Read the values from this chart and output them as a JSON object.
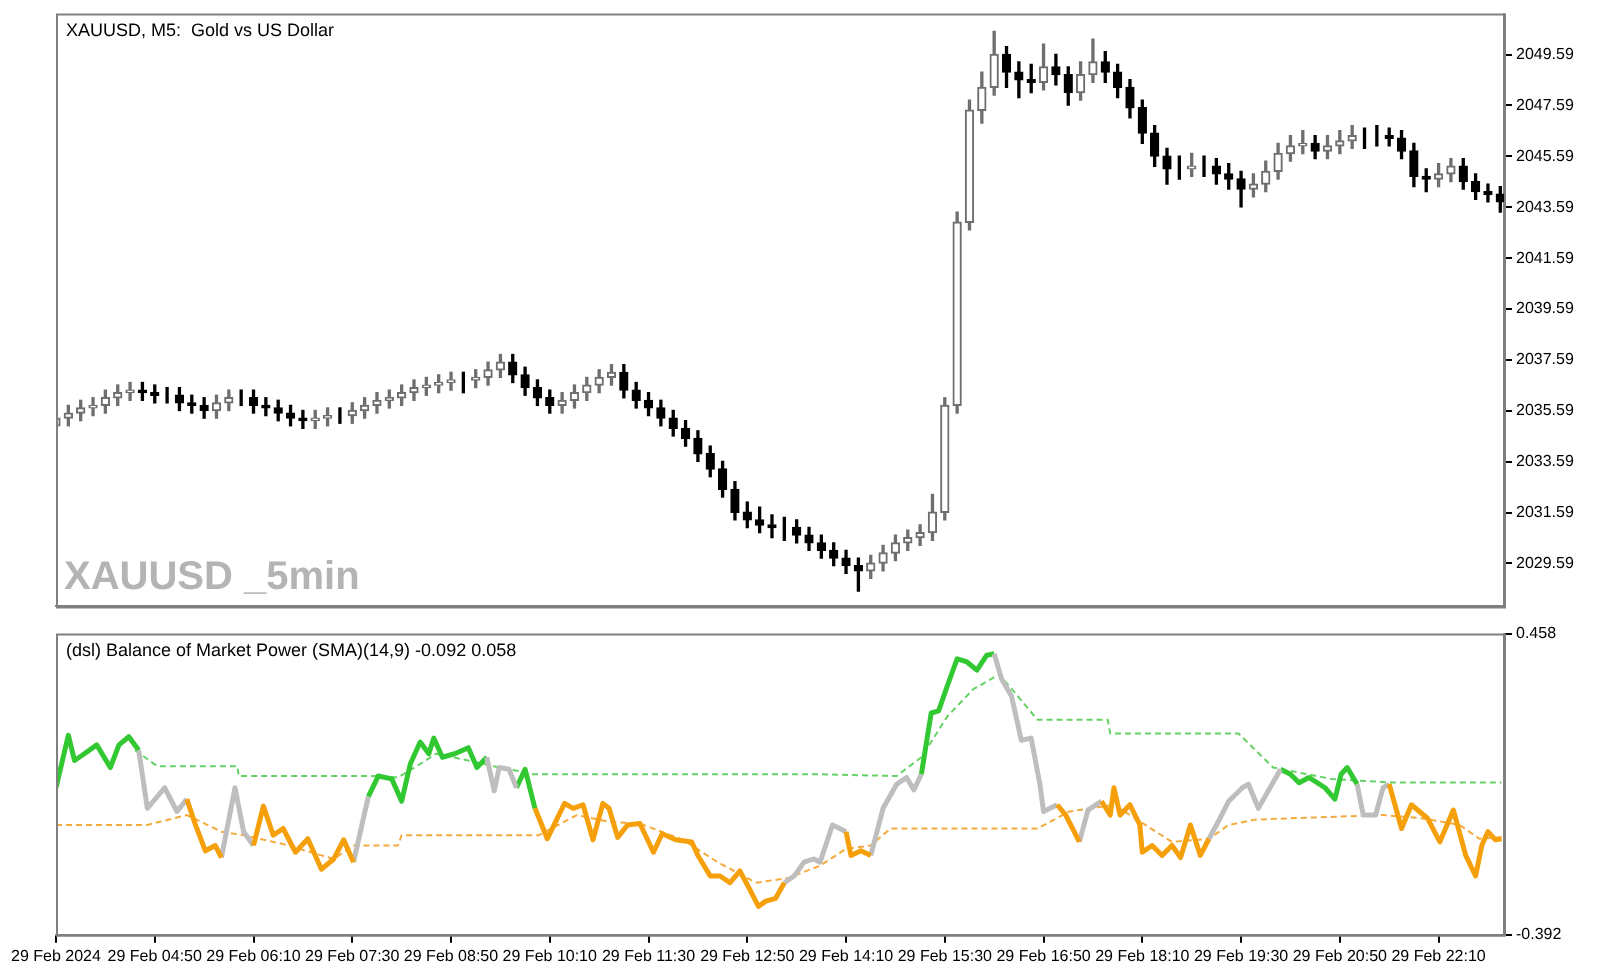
{
  "chart_data": [
    {
      "type": "candlestick",
      "title": "XAUUSD, M5:  Gold vs US Dollar",
      "annotations": [
        "XAUUSD _5min"
      ],
      "colors": [
        "#6e6e6e",
        "#6e6e6e",
        "#6e6e6e",
        "#6e6e6e",
        "#6e6e6e",
        "#6e6e6e",
        "#6e6e6e",
        "#000000",
        "#000000",
        "#000000",
        "#000000",
        "#000000",
        "#000000",
        "#6e6e6e",
        "#6e6e6e",
        "#000000",
        "#000000",
        "#000000",
        "#000000",
        "#000000",
        "#000000",
        "#6e6e6e",
        "#6e6e6e",
        "#000000",
        "#6e6e6e",
        "#6e6e6e",
        "#6e6e6e",
        "#6e6e6e",
        "#6e6e6e",
        "#6e6e6e",
        "#6e6e6e",
        "#6e6e6e",
        "#6e6e6e",
        "#000000",
        "#6e6e6e",
        "#6e6e6e",
        "#6e6e6e",
        "#000000",
        "#000000",
        "#000000",
        "#000000",
        "#6e6e6e",
        "#6e6e6e",
        "#6e6e6e",
        "#6e6e6e",
        "#6e6e6e",
        "#000000",
        "#000000",
        "#000000",
        "#000000",
        "#000000",
        "#000000",
        "#000000",
        "#000000",
        "#000000",
        "#000000",
        "#000000",
        "#000000",
        "#000000",
        "#000000",
        "#000000",
        "#000000",
        "#000000",
        "#000000",
        "#000000",
        "#000000",
        "#6e6e6e",
        "#6e6e6e",
        "#6e6e6e",
        "#6e6e6e",
        "#6e6e6e",
        "#6e6e6e",
        "#6e6e6e",
        "#6e6e6e",
        "#6e6e6e",
        "#6e6e6e",
        "#6e6e6e",
        "#000000",
        "#000000",
        "#000000",
        "#6e6e6e",
        "#000000",
        "#000000",
        "#6e6e6e",
        "#6e6e6e",
        "#000000",
        "#000000",
        "#000000",
        "#000000",
        "#000000",
        "#000000",
        "#000000",
        "#6e6e6e",
        "#000000",
        "#000000",
        "#000000",
        "#000000",
        "#6e6e6e",
        "#6e6e6e",
        "#6e6e6e",
        "#6e6e6e",
        "#6e6e6e",
        "#000000",
        "#6e6e6e",
        "#6e6e6e",
        "#6e6e6e",
        "#000000",
        "#000000",
        "#000000",
        "#000000",
        "#000000",
        "#000000",
        "#6e6e6e",
        "#6e6e6e",
        "#000000",
        "#000000",
        "#000000",
        "#000000"
      ],
      "grid": false,
      "legend": false,
      "tick_labels": "y",
      "xlim": [
        "2024-02-29T03:30",
        "2024-02-29T23:03"
      ],
      "ylim": [
        2027.9,
        2051.2
      ],
      "yticks": [
        2029.59,
        2031.59,
        2033.59,
        2035.59,
        2037.59,
        2039.59,
        2041.59,
        2043.59,
        2045.59,
        2047.59,
        2049.59
      ],
      "x": [
        "2024-02-29T03:30",
        "2024-02-29T03:40",
        "2024-02-29T03:50",
        "2024-02-29T04:00",
        "2024-02-29T04:10",
        "2024-02-29T04:20",
        "2024-02-29T04:30",
        "2024-02-29T04:40",
        "2024-02-29T04:50",
        "2024-02-29T05:00",
        "2024-02-29T05:10",
        "2024-02-29T05:20",
        "2024-02-29T05:30",
        "2024-02-29T05:40",
        "2024-02-29T05:50",
        "2024-02-29T06:00",
        "2024-02-29T06:10",
        "2024-02-29T06:20",
        "2024-02-29T06:30",
        "2024-02-29T06:40",
        "2024-02-29T06:50",
        "2024-02-29T07:00",
        "2024-02-29T07:10",
        "2024-02-29T07:20",
        "2024-02-29T07:30",
        "2024-02-29T07:40",
        "2024-02-29T07:50",
        "2024-02-29T08:00",
        "2024-02-29T08:10",
        "2024-02-29T08:20",
        "2024-02-29T08:30",
        "2024-02-29T08:40",
        "2024-02-29T08:50",
        "2024-02-29T09:00",
        "2024-02-29T09:10",
        "2024-02-29T09:20",
        "2024-02-29T09:30",
        "2024-02-29T09:40",
        "2024-02-29T09:50",
        "2024-02-29T10:00",
        "2024-02-29T10:10",
        "2024-02-29T10:20",
        "2024-02-29T10:30",
        "2024-02-29T10:40",
        "2024-02-29T10:50",
        "2024-02-29T11:00",
        "2024-02-29T11:10",
        "2024-02-29T11:20",
        "2024-02-29T11:30",
        "2024-02-29T11:40",
        "2024-02-29T11:50",
        "2024-02-29T12:00",
        "2024-02-29T12:10",
        "2024-02-29T12:20",
        "2024-02-29T12:30",
        "2024-02-29T12:40",
        "2024-02-29T12:50",
        "2024-02-29T13:00",
        "2024-02-29T13:10",
        "2024-02-29T13:20",
        "2024-02-29T13:30",
        "2024-02-29T13:40",
        "2024-02-29T13:50",
        "2024-02-29T14:00",
        "2024-02-29T14:10",
        "2024-02-29T14:20",
        "2024-02-29T14:30",
        "2024-02-29T14:40",
        "2024-02-29T14:50",
        "2024-02-29T15:00",
        "2024-02-29T15:10",
        "2024-02-29T15:20",
        "2024-02-29T15:30",
        "2024-02-29T15:40",
        "2024-02-29T15:50",
        "2024-02-29T16:00",
        "2024-02-29T16:10",
        "2024-02-29T16:20",
        "2024-02-29T16:30",
        "2024-02-29T16:40",
        "2024-02-29T16:50",
        "2024-02-29T17:00",
        "2024-02-29T17:10",
        "2024-02-29T17:20",
        "2024-02-29T17:30",
        "2024-02-29T17:40",
        "2024-02-29T17:50",
        "2024-02-29T18:00",
        "2024-02-29T18:10",
        "2024-02-29T18:20",
        "2024-02-29T18:30",
        "2024-02-29T18:40",
        "2024-02-29T18:50",
        "2024-02-29T19:00",
        "2024-02-29T19:10",
        "2024-02-29T19:20",
        "2024-02-29T19:30",
        "2024-02-29T19:40",
        "2024-02-29T19:50",
        "2024-02-29T20:00",
        "2024-02-29T20:10",
        "2024-02-29T20:20",
        "2024-02-29T20:30",
        "2024-02-29T20:40",
        "2024-02-29T20:50",
        "2024-02-29T21:00",
        "2024-02-29T21:10",
        "2024-02-29T21:20",
        "2024-02-29T21:30",
        "2024-02-29T21:40",
        "2024-02-29T21:50",
        "2024-02-29T22:00",
        "2024-02-29T22:10",
        "2024-02-29T22:20",
        "2024-02-29T22:30",
        "2024-02-29T22:40",
        "2024-02-29T22:50",
        "2024-02-29T23:00"
      ],
      "ohlc": [
        [
          2035.0,
          2035.6,
          2034.7,
          2035.3
        ],
        [
          2035.3,
          2035.8,
          2035.0,
          2035.5
        ],
        [
          2035.5,
          2036.0,
          2035.2,
          2035.7
        ],
        [
          2035.7,
          2036.1,
          2035.4,
          2035.8
        ],
        [
          2035.8,
          2036.4,
          2035.5,
          2036.1
        ],
        [
          2036.1,
          2036.6,
          2035.8,
          2036.3
        ],
        [
          2036.3,
          2036.7,
          2036.0,
          2036.4
        ],
        [
          2036.4,
          2036.7,
          2036.0,
          2036.3
        ],
        [
          2036.3,
          2036.6,
          2035.9,
          2036.2
        ],
        [
          2036.2,
          2036.5,
          2035.9,
          2036.2
        ],
        [
          2036.2,
          2036.5,
          2035.6,
          2035.9
        ],
        [
          2035.9,
          2036.2,
          2035.5,
          2035.8
        ],
        [
          2035.8,
          2036.1,
          2035.3,
          2035.6
        ],
        [
          2035.6,
          2036.2,
          2035.3,
          2035.9
        ],
        [
          2035.9,
          2036.4,
          2035.6,
          2036.1
        ],
        [
          2036.1,
          2036.4,
          2035.8,
          2036.1
        ],
        [
          2036.1,
          2036.4,
          2035.5,
          2035.8
        ],
        [
          2035.8,
          2036.1,
          2035.4,
          2035.7
        ],
        [
          2035.7,
          2036.0,
          2035.2,
          2035.5
        ],
        [
          2035.5,
          2035.8,
          2035.0,
          2035.3
        ],
        [
          2035.3,
          2035.6,
          2034.9,
          2035.2
        ],
        [
          2035.2,
          2035.6,
          2034.9,
          2035.3
        ],
        [
          2035.3,
          2035.7,
          2035.0,
          2035.4
        ],
        [
          2035.4,
          2035.7,
          2035.1,
          2035.4
        ],
        [
          2035.4,
          2035.9,
          2035.1,
          2035.6
        ],
        [
          2035.6,
          2036.1,
          2035.3,
          2035.8
        ],
        [
          2035.8,
          2036.3,
          2035.5,
          2036.0
        ],
        [
          2036.0,
          2036.4,
          2035.7,
          2036.1
        ],
        [
          2036.1,
          2036.6,
          2035.8,
          2036.3
        ],
        [
          2036.3,
          2036.8,
          2036.0,
          2036.5
        ],
        [
          2036.5,
          2036.9,
          2036.2,
          2036.6
        ],
        [
          2036.6,
          2037.0,
          2036.3,
          2036.7
        ],
        [
          2036.7,
          2037.1,
          2036.4,
          2036.8
        ],
        [
          2036.8,
          2037.1,
          2036.3,
          2036.8
        ],
        [
          2036.8,
          2037.2,
          2036.5,
          2036.9
        ],
        [
          2036.9,
          2037.5,
          2036.6,
          2037.2
        ],
        [
          2037.2,
          2037.8,
          2036.9,
          2037.5
        ],
        [
          2037.5,
          2037.8,
          2036.7,
          2037.0
        ],
        [
          2037.0,
          2037.3,
          2036.2,
          2036.5
        ],
        [
          2036.5,
          2036.8,
          2035.8,
          2036.1
        ],
        [
          2036.1,
          2036.4,
          2035.5,
          2035.8
        ],
        [
          2035.8,
          2036.3,
          2035.5,
          2036.0
        ],
        [
          2036.0,
          2036.6,
          2035.7,
          2036.3
        ],
        [
          2036.3,
          2036.9,
          2036.0,
          2036.6
        ],
        [
          2036.6,
          2037.2,
          2036.3,
          2036.9
        ],
        [
          2036.9,
          2037.4,
          2036.6,
          2037.1
        ],
        [
          2037.1,
          2037.4,
          2036.1,
          2036.4
        ],
        [
          2036.4,
          2036.7,
          2035.7,
          2036.0
        ],
        [
          2036.0,
          2036.3,
          2035.4,
          2035.7
        ],
        [
          2035.7,
          2036.0,
          2035.0,
          2035.3
        ],
        [
          2035.3,
          2035.6,
          2034.6,
          2034.9
        ],
        [
          2034.9,
          2035.2,
          2034.2,
          2034.5
        ],
        [
          2034.5,
          2034.8,
          2033.6,
          2033.9
        ],
        [
          2033.9,
          2034.2,
          2033.0,
          2033.3
        ],
        [
          2033.3,
          2033.6,
          2032.2,
          2032.5
        ],
        [
          2032.5,
          2032.8,
          2031.3,
          2031.6
        ],
        [
          2031.6,
          2032.0,
          2031.0,
          2031.3
        ],
        [
          2031.3,
          2031.8,
          2030.8,
          2031.1
        ],
        [
          2031.1,
          2031.5,
          2030.6,
          2031.0
        ],
        [
          2031.0,
          2031.4,
          2030.5,
          2031.0
        ],
        [
          2031.0,
          2031.3,
          2030.4,
          2030.7
        ],
        [
          2030.7,
          2031.0,
          2030.1,
          2030.4
        ],
        [
          2030.4,
          2030.7,
          2029.8,
          2030.1
        ],
        [
          2030.1,
          2030.4,
          2029.5,
          2029.8
        ],
        [
          2029.8,
          2030.1,
          2029.2,
          2029.5
        ],
        [
          2029.5,
          2029.8,
          2028.5,
          2029.3
        ],
        [
          2029.3,
          2029.9,
          2029.0,
          2029.6
        ],
        [
          2029.6,
          2030.3,
          2029.3,
          2030.0
        ],
        [
          2030.0,
          2030.7,
          2029.7,
          2030.4
        ],
        [
          2030.4,
          2030.9,
          2030.1,
          2030.6
        ],
        [
          2030.6,
          2031.1,
          2030.3,
          2030.8
        ],
        [
          2030.8,
          2032.3,
          2030.5,
          2031.6
        ],
        [
          2031.6,
          2036.1,
          2031.3,
          2035.8
        ],
        [
          2035.8,
          2043.4,
          2035.5,
          2043.0
        ],
        [
          2043.0,
          2047.8,
          2042.7,
          2047.4
        ],
        [
          2047.4,
          2048.9,
          2046.9,
          2048.3
        ],
        [
          2048.3,
          2050.5,
          2048.0,
          2049.6
        ],
        [
          2049.6,
          2049.9,
          2048.3,
          2048.9
        ],
        [
          2048.9,
          2049.3,
          2047.9,
          2048.6
        ],
        [
          2048.6,
          2049.2,
          2048.1,
          2048.5
        ],
        [
          2048.5,
          2050.0,
          2048.2,
          2049.1
        ],
        [
          2049.1,
          2049.6,
          2048.4,
          2048.8
        ],
        [
          2048.8,
          2049.1,
          2047.6,
          2048.1
        ],
        [
          2048.1,
          2049.3,
          2047.8,
          2048.8
        ],
        [
          2048.8,
          2050.2,
          2048.5,
          2049.3
        ],
        [
          2049.3,
          2049.7,
          2048.5,
          2048.9
        ],
        [
          2048.9,
          2049.2,
          2047.9,
          2048.3
        ],
        [
          2048.3,
          2048.6,
          2047.1,
          2047.5
        ],
        [
          2047.5,
          2047.8,
          2046.1,
          2046.5
        ],
        [
          2046.5,
          2046.8,
          2045.2,
          2045.6
        ],
        [
          2045.6,
          2045.9,
          2044.5,
          2045.1
        ],
        [
          2045.1,
          2045.6,
          2044.7,
          2045.1
        ],
        [
          2045.1,
          2045.7,
          2044.8,
          2045.2
        ],
        [
          2045.2,
          2045.6,
          2044.8,
          2045.2
        ],
        [
          2045.2,
          2045.5,
          2044.5,
          2044.9
        ],
        [
          2044.9,
          2045.3,
          2044.3,
          2044.7
        ],
        [
          2044.7,
          2045.0,
          2043.6,
          2044.3
        ],
        [
          2044.3,
          2044.9,
          2044.0,
          2044.5
        ],
        [
          2044.5,
          2045.4,
          2044.2,
          2045.0
        ],
        [
          2045.0,
          2046.1,
          2044.7,
          2045.7
        ],
        [
          2045.7,
          2046.4,
          2045.4,
          2046.0
        ],
        [
          2046.0,
          2046.6,
          2045.7,
          2046.1
        ],
        [
          2046.1,
          2046.4,
          2045.5,
          2045.8
        ],
        [
          2045.8,
          2046.4,
          2045.5,
          2046.0
        ],
        [
          2046.0,
          2046.6,
          2045.7,
          2046.2
        ],
        [
          2046.2,
          2046.8,
          2045.9,
          2046.4
        ],
        [
          2046.4,
          2046.7,
          2045.9,
          2046.4
        ],
        [
          2046.4,
          2046.8,
          2046.0,
          2046.4
        ],
        [
          2046.4,
          2046.7,
          2046.0,
          2046.3
        ],
        [
          2046.3,
          2046.6,
          2045.5,
          2045.8
        ],
        [
          2045.8,
          2046.1,
          2044.4,
          2044.8
        ],
        [
          2044.8,
          2045.1,
          2044.2,
          2044.7
        ],
        [
          2044.7,
          2045.3,
          2044.4,
          2044.9
        ],
        [
          2044.9,
          2045.5,
          2044.6,
          2045.2
        ],
        [
          2045.2,
          2045.5,
          2044.3,
          2044.6
        ],
        [
          2044.6,
          2044.9,
          2043.9,
          2044.2
        ],
        [
          2044.2,
          2044.5,
          2043.8,
          2044.1
        ],
        [
          2044.1,
          2044.4,
          2043.4,
          2043.8
        ]
      ]
    },
    {
      "type": "line",
      "title": "(dsl) Balance of Market Power (SMA)(14,9) -0.092 0.058",
      "grid": false,
      "legend": false,
      "marker": "none",
      "xlim": [
        "2024-02-29T03:30",
        "2024-02-29T23:03"
      ],
      "ylim": [
        -0.392,
        0.458
      ],
      "yticks": [
        -0.392,
        0.458
      ],
      "xticks": [
        {
          "value": "2024-02-29T03:30",
          "label": "29 Feb 2024"
        },
        {
          "value": "2024-02-29T04:50",
          "label": "29 Feb 04:50"
        },
        {
          "value": "2024-02-29T06:10",
          "label": "29 Feb 06:10"
        },
        {
          "value": "2024-02-29T07:30",
          "label": "29 Feb 07:30"
        },
        {
          "value": "2024-02-29T08:50",
          "label": "29 Feb 08:50"
        },
        {
          "value": "2024-02-29T10:10",
          "label": "29 Feb 10:10"
        },
        {
          "value": "2024-02-29T11:30",
          "label": "29 Feb 11:30"
        },
        {
          "value": "2024-02-29T12:50",
          "label": "29 Feb 12:50"
        },
        {
          "value": "2024-02-29T14:10",
          "label": "29 Feb 14:10"
        },
        {
          "value": "2024-02-29T15:30",
          "label": "29 Feb 15:30"
        },
        {
          "value": "2024-02-29T16:50",
          "label": "29 Feb 16:50"
        },
        {
          "value": "2024-02-29T18:10",
          "label": "29 Feb 18:10"
        },
        {
          "value": "2024-02-29T19:30",
          "label": "29 Feb 19:30"
        },
        {
          "value": "2024-02-29T20:50",
          "label": "29 Feb 20:50"
        },
        {
          "value": "2024-02-29T22:10",
          "label": "29 Feb 22:10"
        }
      ],
      "x": [
        "2024-02-29T03:30",
        "2024-02-29T03:40",
        "2024-02-29T03:45",
        "2024-02-29T03:53",
        "2024-02-29T04:03",
        "2024-02-29T04:14",
        "2024-02-29T04:21",
        "2024-02-29T04:29",
        "2024-02-29T04:37",
        "2024-02-29T04:44",
        "2024-02-29T04:58",
        "2024-02-29T05:08",
        "2024-02-29T05:16",
        "2024-02-29T05:23",
        "2024-02-29T05:31",
        "2024-02-29T05:39",
        "2024-02-29T05:44",
        "2024-02-29T05:55",
        "2024-02-29T06:02",
        "2024-02-29T06:10",
        "2024-02-29T06:18",
        "2024-02-29T06:26",
        "2024-02-29T06:34",
        "2024-02-29T06:44",
        "2024-02-29T06:54",
        "2024-02-29T07:05",
        "2024-02-29T07:15",
        "2024-02-29T07:23",
        "2024-02-29T07:31",
        "2024-02-29T07:43",
        "2024-02-29T07:51",
        "2024-02-29T08:02",
        "2024-02-29T08:10",
        "2024-02-29T08:17",
        "2024-02-29T08:25",
        "2024-02-29T08:32",
        "2024-02-29T08:36",
        "2024-02-29T08:43",
        "2024-02-29T08:53",
        "2024-02-29T09:04",
        "2024-02-29T09:11",
        "2024-02-29T09:19",
        "2024-02-29T09:25",
        "2024-02-29T09:29",
        "2024-02-29T09:37",
        "2024-02-29T09:43",
        "2024-02-29T09:50",
        "2024-02-29T09:58",
        "2024-02-29T10:08",
        "2024-02-29T10:22",
        "2024-02-29T10:29",
        "2024-02-29T10:37",
        "2024-02-29T10:45",
        "2024-02-29T10:53",
        "2024-02-29T10:58",
        "2024-02-29T11:05",
        "2024-02-29T11:13",
        "2024-02-29T11:23",
        "2024-02-29T11:34",
        "2024-02-29T11:41",
        "2024-02-29T11:52",
        "2024-02-29T12:05",
        "2024-02-29T12:10",
        "2024-02-29T12:20",
        "2024-02-29T12:28",
        "2024-02-29T12:36",
        "2024-02-29T12:44",
        "2024-02-29T12:52",
        "2024-02-29T12:59",
        "2024-02-29T13:05",
        "2024-02-29T13:13",
        "2024-02-29T13:20",
        "2024-02-29T13:28",
        "2024-02-29T13:36",
        "2024-02-29T13:44",
        "2024-02-29T13:49",
        "2024-02-29T13:59",
        "2024-02-29T14:10",
        "2024-02-29T14:14",
        "2024-02-29T14:22",
        "2024-02-29T14:30",
        "2024-02-29T14:40",
        "2024-02-29T14:51",
        "2024-02-29T14:59",
        "2024-02-29T15:05",
        "2024-02-29T15:11",
        "2024-02-29T15:19",
        "2024-02-29T15:25",
        "2024-02-29T15:32",
        "2024-02-29T15:40",
        "2024-02-29T15:48",
        "2024-02-29T15:56",
        "2024-02-29T16:04",
        "2024-02-29T16:10",
        "2024-02-29T16:16",
        "2024-02-29T16:24",
        "2024-02-29T16:32",
        "2024-02-29T16:40",
        "2024-02-29T16:47",
        "2024-02-29T16:50",
        "2024-02-29T17:01",
        "2024-02-29T17:08",
        "2024-02-29T17:19",
        "2024-02-29T17:26",
        "2024-02-29T17:37",
        "2024-02-29T17:44",
        "2024-02-29T17:47",
        "2024-02-29T17:52",
        "2024-02-29T18:00",
        "2024-02-29T18:08",
        "2024-02-29T18:10",
        "2024-02-29T18:18",
        "2024-02-29T18:26",
        "2024-02-29T18:34",
        "2024-02-29T18:41",
        "2024-02-29T18:49",
        "2024-02-29T18:57",
        "2024-02-29T19:04",
        "2024-02-29T19:13",
        "2024-02-29T19:20",
        "2024-02-29T19:31",
        "2024-02-29T19:36",
        "2024-02-29T19:44",
        "2024-02-29T19:52",
        "2024-02-29T20:02",
        "2024-02-29T20:10",
        "2024-02-29T20:17",
        "2024-02-29T20:25",
        "2024-02-29T20:38",
        "2024-02-29T20:46",
        "2024-02-29T20:51",
        "2024-02-29T20:56",
        "2024-02-29T21:04",
        "2024-02-29T21:09",
        "2024-02-29T21:19",
        "2024-02-29T21:25",
        "2024-02-29T21:30",
        "2024-02-29T21:40",
        "2024-02-29T21:48",
        "2024-02-29T22:01",
        "2024-02-29T22:11",
        "2024-02-29T22:22",
        "2024-02-29T22:32",
        "2024-02-29T22:40",
        "2024-02-29T22:45",
        "2024-02-29T22:50",
        "2024-02-29T22:56",
        "2024-02-29T23:01"
      ],
      "series": [
        {
          "color": "#32c832",
          "line_style": "solid",
          "values": [
            0.023,
            0.171,
            0.1,
            0.119,
            0.144,
            0.08,
            0.144,
            0.167,
            0.129,
            null,
            null,
            null,
            null,
            null,
            null,
            null,
            null,
            null,
            null,
            null,
            null,
            null,
            null,
            null,
            null,
            null,
            null,
            null,
            null,
            -0.002,
            0.056,
            0.048,
            -0.015,
            0.09,
            0.152,
            0.119,
            0.163,
            0.109,
            0.119,
            0.136,
            0.08,
            0.109,
            null,
            null,
            null,
            0.023,
            0.075,
            -0.035,
            null,
            null,
            null,
            null,
            null,
            null,
            null,
            null,
            null,
            null,
            null,
            null,
            null,
            null,
            null,
            null,
            null,
            null,
            null,
            null,
            null,
            null,
            null,
            null,
            null,
            null,
            null,
            null,
            null,
            null,
            null,
            null,
            null,
            null,
            null,
            null,
            null,
            0.061,
            0.234,
            0.24,
            0.31,
            0.387,
            0.378,
            0.355,
            0.397,
            0.401,
            null,
            null,
            null,
            null,
            null,
            null,
            null,
            null,
            null,
            null,
            null,
            null,
            null,
            null,
            null,
            null,
            null,
            null,
            null,
            null,
            null,
            null,
            null,
            null,
            null,
            null,
            null,
            null,
            null,
            null,
            0.075,
            0.061,
            0.037,
            0.052,
            0.023,
            -0.009,
            0.061,
            0.08,
            0.033,
            null,
            null,
            null,
            null,
            null,
            null,
            null,
            null,
            null,
            null,
            null,
            null,
            null,
            null,
            null
          ]
        },
        {
          "color": "#bebebe",
          "line_style": "solid",
          "values": [
            null,
            null,
            null,
            null,
            null,
            null,
            null,
            null,
            0.129,
            -0.035,
            0.023,
            -0.044,
            -0.009,
            null,
            null,
            null,
            -0.174,
            0.023,
            -0.101,
            -0.14,
            null,
            null,
            null,
            null,
            null,
            null,
            null,
            null,
            -0.187,
            -0.002,
            null,
            null,
            null,
            null,
            null,
            null,
            null,
            null,
            null,
            null,
            null,
            0.109,
            0.014,
            0.08,
            0.075,
            0.023,
            null,
            null,
            null,
            null,
            null,
            null,
            null,
            null,
            null,
            null,
            null,
            null,
            null,
            null,
            null,
            null,
            null,
            null,
            null,
            null,
            null,
            null,
            null,
            null,
            null,
            -0.245,
            -0.226,
            -0.187,
            -0.178,
            -0.187,
            -0.082,
            -0.101,
            null,
            null,
            -0.168,
            -0.035,
            0.033,
            0.052,
            0.017,
            0.061,
            null,
            null,
            null,
            null,
            null,
            null,
            null,
            0.401,
            0.33,
            0.282,
            0.157,
            0.163,
            0.033,
            -0.044,
            -0.025,
            null,
            -0.13,
            -0.04,
            -0.015,
            null,
            null,
            null,
            null,
            null,
            null,
            null,
            null,
            null,
            null,
            null,
            null,
            -0.121,
            -0.063,
            -0.015,
            0.023,
            0.033,
            -0.035,
            0.014,
            0.075,
            null,
            null,
            null,
            null,
            null,
            null,
            null,
            0.033,
            -0.054,
            -0.054,
            0.023,
            0.033,
            null,
            null,
            null,
            null,
            null,
            null,
            null,
            null,
            null,
            null,
            null
          ]
        },
        {
          "color": "#f5a00a",
          "line_style": "solid",
          "values": [
            null,
            null,
            null,
            null,
            null,
            null,
            null,
            null,
            null,
            null,
            null,
            null,
            -0.009,
            -0.082,
            -0.155,
            -0.14,
            -0.174,
            null,
            null,
            -0.14,
            -0.029,
            -0.111,
            -0.092,
            -0.159,
            -0.121,
            -0.207,
            -0.178,
            -0.124,
            -0.187,
            null,
            null,
            null,
            null,
            null,
            null,
            null,
            null,
            null,
            null,
            null,
            null,
            null,
            null,
            null,
            null,
            null,
            null,
            -0.035,
            -0.121,
            -0.021,
            -0.035,
            -0.025,
            -0.124,
            -0.021,
            -0.035,
            -0.117,
            -0.082,
            -0.078,
            -0.159,
            -0.107,
            -0.124,
            -0.13,
            -0.168,
            -0.226,
            -0.226,
            -0.245,
            -0.212,
            -0.264,
            -0.312,
            -0.297,
            -0.289,
            -0.245,
            null,
            null,
            null,
            null,
            null,
            -0.101,
            -0.168,
            -0.155,
            -0.168,
            null,
            null,
            null,
            null,
            null,
            null,
            null,
            null,
            null,
            null,
            null,
            null,
            null,
            null,
            null,
            null,
            null,
            null,
            null,
            -0.025,
            -0.054,
            -0.13,
            null,
            -0.015,
            -0.054,
            0.023,
            -0.054,
            -0.025,
            -0.082,
            -0.159,
            -0.14,
            -0.168,
            -0.14,
            -0.174,
            -0.082,
            -0.168,
            -0.121,
            null,
            null,
            null,
            null,
            null,
            null,
            null,
            null,
            null,
            null,
            null,
            null,
            null,
            null,
            null,
            null,
            null,
            null,
            0.033,
            -0.092,
            -0.025,
            -0.063,
            -0.13,
            -0.04,
            -0.168,
            -0.226,
            -0.14,
            -0.101,
            -0.124,
            -0.121
          ]
        },
        {
          "color": "#64d264",
          "line_style": "dashed",
          "x": [
            "2024-02-29T04:34",
            "2024-02-29T04:52",
            "2024-02-29T05:57",
            "2024-02-29T05:58",
            "2024-02-29T07:46",
            "2024-02-29T08:07",
            "2024-02-29T08:25",
            "2024-02-29T08:38",
            "2024-02-29T09:04",
            "2024-02-29T09:29",
            "2024-02-29T09:50",
            "2024-02-29T09:55",
            "2024-02-29T13:49",
            "2024-02-29T14:51",
            "2024-02-29T15:11",
            "2024-02-29T15:32",
            "2024-02-29T15:53",
            "2024-02-29T16:14",
            "2024-02-29T16:29",
            "2024-02-29T16:45",
            "2024-02-29T17:42",
            "2024-02-29T17:44",
            "2024-02-29T19:28",
            "2024-02-29T19:56",
            "2024-02-29T20:43",
            "2024-02-29T21:30",
            "2024-02-29T23:01"
          ],
          "values": [
            0.129,
            0.084,
            0.084,
            0.056,
            0.056,
            0.052,
            0.09,
            0.119,
            0.1,
            0.08,
            0.067,
            0.061,
            0.061,
            0.056,
            0.109,
            0.224,
            0.301,
            0.343,
            0.282,
            0.215,
            0.215,
            0.176,
            0.176,
            0.08,
            0.048,
            0.038,
            0.038
          ]
        },
        {
          "color": "#f5aa3c",
          "line_style": "dashed",
          "x": [
            "2024-02-29T03:30",
            "2024-02-29T04:44",
            "2024-02-29T05:16",
            "2024-02-29T05:44",
            "2024-02-29T06:02",
            "2024-02-29T06:34",
            "2024-02-29T07:15",
            "2024-02-29T07:31",
            "2024-02-29T08:07",
            "2024-02-29T08:10",
            "2024-02-29T10:01",
            "2024-02-29T10:32",
            "2024-02-29T10:58",
            "2024-02-29T11:23",
            "2024-02-29T11:58",
            "2024-02-29T12:26",
            "2024-02-29T12:57",
            "2024-02-29T13:23",
            "2024-02-29T13:49",
            "2024-02-29T14:10",
            "2024-02-29T14:30",
            "2024-02-29T14:46",
            "2024-02-29T16:45",
            "2024-02-29T17:11",
            "2024-02-29T17:47",
            "2024-02-29T18:34",
            "2024-02-29T19:04",
            "2024-02-29T19:20",
            "2024-02-29T19:41",
            "2024-02-29T21:25",
            "2024-02-29T21:56",
            "2024-02-29T22:27",
            "2024-02-29T22:43",
            "2024-02-29T23:01"
          ],
          "values": [
            -0.082,
            -0.082,
            -0.054,
            -0.101,
            -0.111,
            -0.136,
            -0.178,
            -0.14,
            -0.14,
            -0.111,
            -0.111,
            -0.054,
            -0.073,
            -0.078,
            -0.124,
            -0.187,
            -0.245,
            -0.232,
            -0.197,
            -0.149,
            -0.14,
            -0.092,
            -0.092,
            -0.044,
            -0.025,
            -0.13,
            -0.121,
            -0.082,
            -0.067,
            -0.054,
            -0.063,
            -0.082,
            -0.121,
            -0.117
          ]
        }
      ]
    }
  ]
}
